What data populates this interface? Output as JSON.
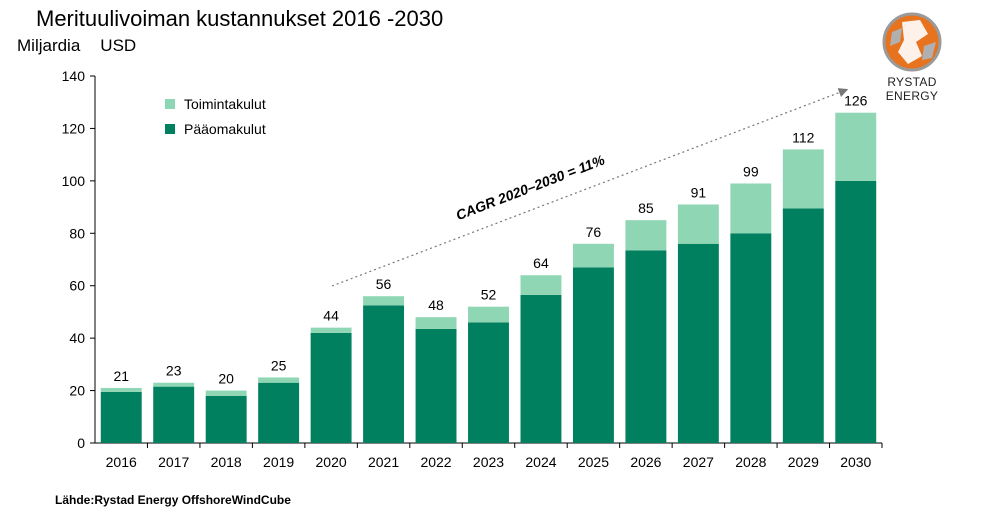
{
  "header": {
    "title": "Merituulivoiman kustannukset 2016 -2030",
    "unit_part1": "Miljardia",
    "unit_part2": "USD"
  },
  "logo": {
    "text": "RYSTAD ENERGY",
    "icon": "rystad-globe-logo"
  },
  "source": "Lähde:Rystad Energy OffshoreWindCube",
  "colors": {
    "capex": "#00805e",
    "opex": "#8fd6b4"
  },
  "chart_data": {
    "type": "bar",
    "stacked": true,
    "categories": [
      "2016",
      "2017",
      "2018",
      "2019",
      "2020",
      "2021",
      "2022",
      "2023",
      "2024",
      "2025",
      "2026",
      "2027",
      "2028",
      "2029",
      "2030"
    ],
    "series": [
      {
        "name": "Pääomakulut",
        "values": [
          19.5,
          21.5,
          18,
          23,
          42,
          52.5,
          43.5,
          46,
          56.5,
          67,
          73.5,
          76,
          80,
          89.5,
          100
        ]
      },
      {
        "name": "Toimintakulut",
        "values": [
          1.5,
          1.5,
          2,
          2,
          2,
          3.5,
          4.5,
          6,
          7.5,
          9,
          11.5,
          15,
          19,
          22.5,
          26
        ]
      }
    ],
    "totals": [
      "21",
      "23",
      "20",
      "25",
      "44",
      "56",
      "48",
      "52",
      "64",
      "76",
      "85",
      "91",
      "99",
      "112",
      "126"
    ],
    "ylim": [
      0,
      140
    ],
    "yticks": [
      "0",
      "20",
      "40",
      "60",
      "80",
      "100",
      "120",
      "140"
    ],
    "legend": [
      "Toimintakulut",
      "Pääomakulut"
    ],
    "legend_position": "top-left",
    "annotation": "CAGR 2020–2030 = 11%",
    "grid": false
  }
}
